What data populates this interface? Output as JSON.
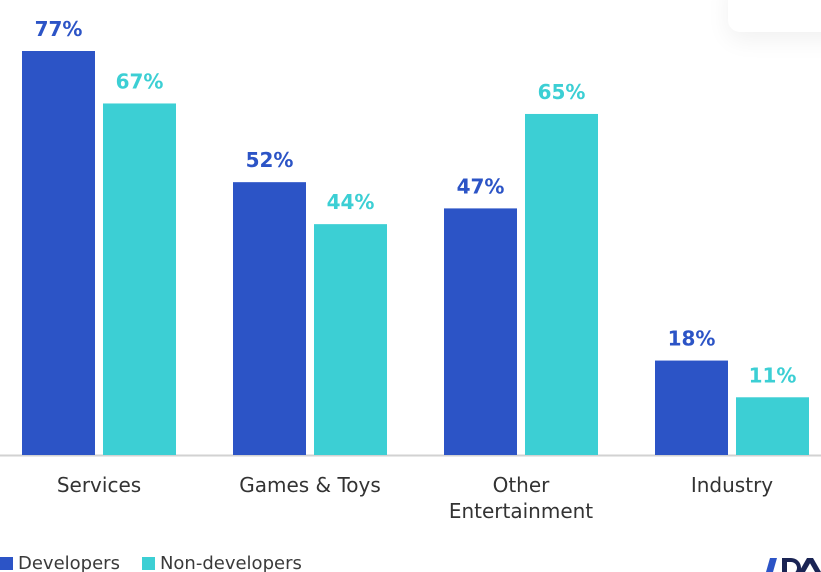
{
  "chart_data": {
    "type": "bar",
    "categories": [
      "Services",
      "Games & Toys",
      "Other\nEntertainment",
      "Industry"
    ],
    "series": [
      {
        "name": "Developers",
        "values": [
          77,
          52,
          47,
          18
        ],
        "labels": [
          "77%",
          "52%",
          "47%",
          "18%"
        ],
        "color": "#2c54c6"
      },
      {
        "name": "Non-developers",
        "values": [
          67,
          44,
          65,
          11
        ],
        "labels": [
          "67%",
          "44%",
          "65%",
          "11%"
        ],
        "color": "#3ccfd4"
      }
    ],
    "unit": "%",
    "ylim": [
      0,
      77
    ],
    "grid": false,
    "legend_position": "bottom-left"
  },
  "colors": {
    "developers": "#2c54c6",
    "non_developers": "#3ccfd4",
    "axis": "#d2d2d2",
    "category_text": "#333333"
  },
  "legend": {
    "developers_label": "Developers",
    "non_developers_label": "Non-developers"
  },
  "icons": {
    "logo": "brand-logo-icon"
  }
}
